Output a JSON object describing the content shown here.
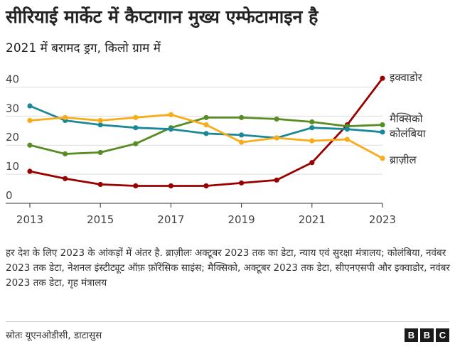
{
  "title": "सीरियाई मार्केट में कैप्टागान मुख्य एम्फेटामाइन है",
  "subtitle": "2021 में बरामद ड्रग, किलो ग्राम में",
  "note": "हर देश के लिए 2023 के आंकड़ों में अंतर है. ब्राज़ीलः अक्टूबर 2023 तक का डेटा, न्याय एवं सुरक्षा मंत्रालय; कोलंबिया, नवंबर 2023 तक डेटा, नेशनल इंस्टीट्यूट ऑफ़ फ़ॉरेंसिक साइंस; मैक्सिको, अक्टूबर 2023 तक डेटा, सीएनएसपी और इक्वाडोर, नवंबर 2023 तक डेटा, गृह मंत्रालय",
  "source": "स्रोतः यूएनओडीसी, डाटासुस",
  "logo": [
    "B",
    "B",
    "C"
  ],
  "chart_data": {
    "type": "line",
    "title": "सीरियाई मार्केट में कैप्टागान मुख्य एम्फेटामाइन है",
    "subtitle": "2021 में बरामद ड्रग, किलो ग्राम में",
    "x": [
      2013,
      2014,
      2015,
      2016,
      2017,
      2018,
      2019,
      2020,
      2021,
      2022,
      2023
    ],
    "xticks": [
      "2013",
      "2015",
      "2017",
      "2019",
      "2021",
      "2023"
    ],
    "yticks": [
      "0",
      "10",
      "20",
      "30",
      "40"
    ],
    "ylim": [
      0,
      45
    ],
    "grid": true,
    "legend": "direct labels at right",
    "series": [
      {
        "name": "इक्वाडोर",
        "color": "#990000",
        "values": [
          11,
          8.5,
          6.5,
          6,
          6,
          6,
          7,
          8,
          14,
          27,
          43
        ]
      },
      {
        "name": "मैक्सिको",
        "color": "#588c24",
        "values": [
          20,
          17,
          17.5,
          20.5,
          26,
          29.5,
          29.5,
          29,
          28,
          26.5,
          27
        ]
      },
      {
        "name": "कोलंबिया",
        "color": "#1b8899",
        "values": [
          33.5,
          28.5,
          27,
          26,
          25.5,
          24,
          23.5,
          22.5,
          26,
          25.5,
          24.5
        ]
      },
      {
        "name": "ब्राज़ील",
        "color": "#faab18",
        "values": [
          28.5,
          29.5,
          28.5,
          29.5,
          30.5,
          27,
          21,
          22.5,
          21.5,
          22,
          15.5
        ]
      }
    ]
  }
}
